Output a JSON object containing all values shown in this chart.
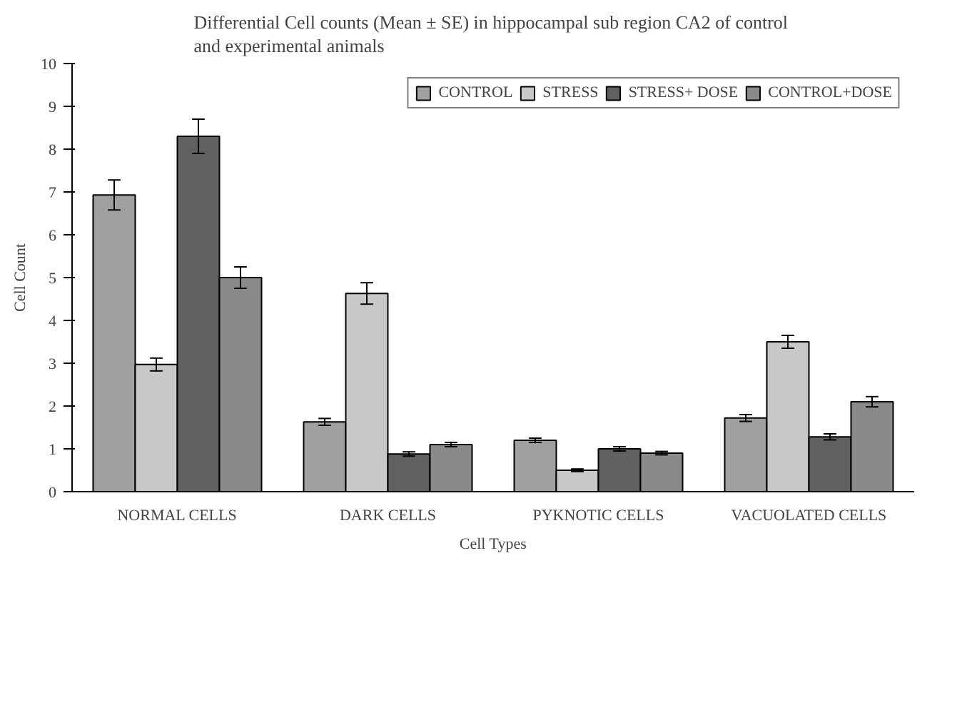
{
  "chart_data": {
    "type": "bar",
    "title": "Differential Cell counts (Mean ± SE) in hippocampal sub region  CA2 of control and experimental animals",
    "xlabel": "Cell Types",
    "ylabel": "Cell Count",
    "categories": [
      "NORMAL CELLS",
      "DARK CELLS",
      "PYKNOTIC CELLS",
      "VACUOLATED CELLS"
    ],
    "series": [
      {
        "name": "CONTROL",
        "color": "#a0a0a0",
        "values": [
          6.93,
          1.63,
          1.2,
          1.72
        ],
        "errors": [
          0.35,
          0.08,
          0.05,
          0.08
        ]
      },
      {
        "name": "STRESS",
        "color": "#c8c8c8",
        "values": [
          2.97,
          4.63,
          0.5,
          3.5
        ],
        "errors": [
          0.15,
          0.25,
          0.03,
          0.15
        ]
      },
      {
        "name": "STRESS+ DOSE",
        "color": "#606060",
        "values": [
          8.3,
          0.88,
          1.0,
          1.28
        ],
        "errors": [
          0.4,
          0.05,
          0.05,
          0.07
        ]
      },
      {
        "name": "CONTROL+DOSE",
        "color": "#8a8a8a",
        "values": [
          5.0,
          1.1,
          0.9,
          2.1
        ],
        "errors": [
          0.25,
          0.05,
          0.04,
          0.12
        ]
      }
    ],
    "ylim": [
      0,
      10
    ],
    "yticks": [
      0,
      1,
      2,
      3,
      4,
      5,
      6,
      7,
      8,
      9,
      10
    ],
    "grid": false,
    "legend": "top right"
  }
}
